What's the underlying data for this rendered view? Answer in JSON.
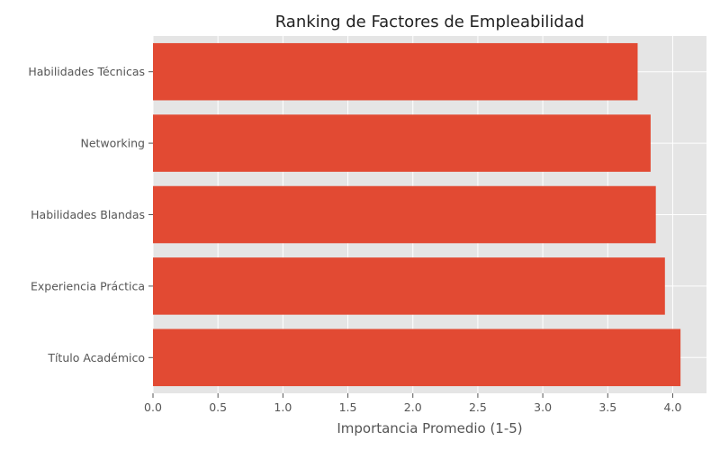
{
  "chart_data": {
    "type": "bar",
    "orientation": "horizontal",
    "title": "Ranking de Factores de Empleabilidad",
    "xlabel": "Importancia Promedio (1-5)",
    "ylabel": "",
    "categories": [
      "Habilidades Técnicas",
      "Networking",
      "Habilidades Blandas",
      "Experiencia Práctica",
      "Título Académico"
    ],
    "values": [
      3.73,
      3.83,
      3.87,
      3.94,
      4.06
    ],
    "xlim": [
      0,
      4.26
    ],
    "xticks": [
      "0.0",
      "0.5",
      "1.0",
      "1.5",
      "2.0",
      "2.5",
      "3.0",
      "3.5",
      "4.0"
    ],
    "grid": true,
    "bar_color": "#E24A33",
    "background_color": "#E5E5E5",
    "grid_color": "#FFFFFF"
  }
}
